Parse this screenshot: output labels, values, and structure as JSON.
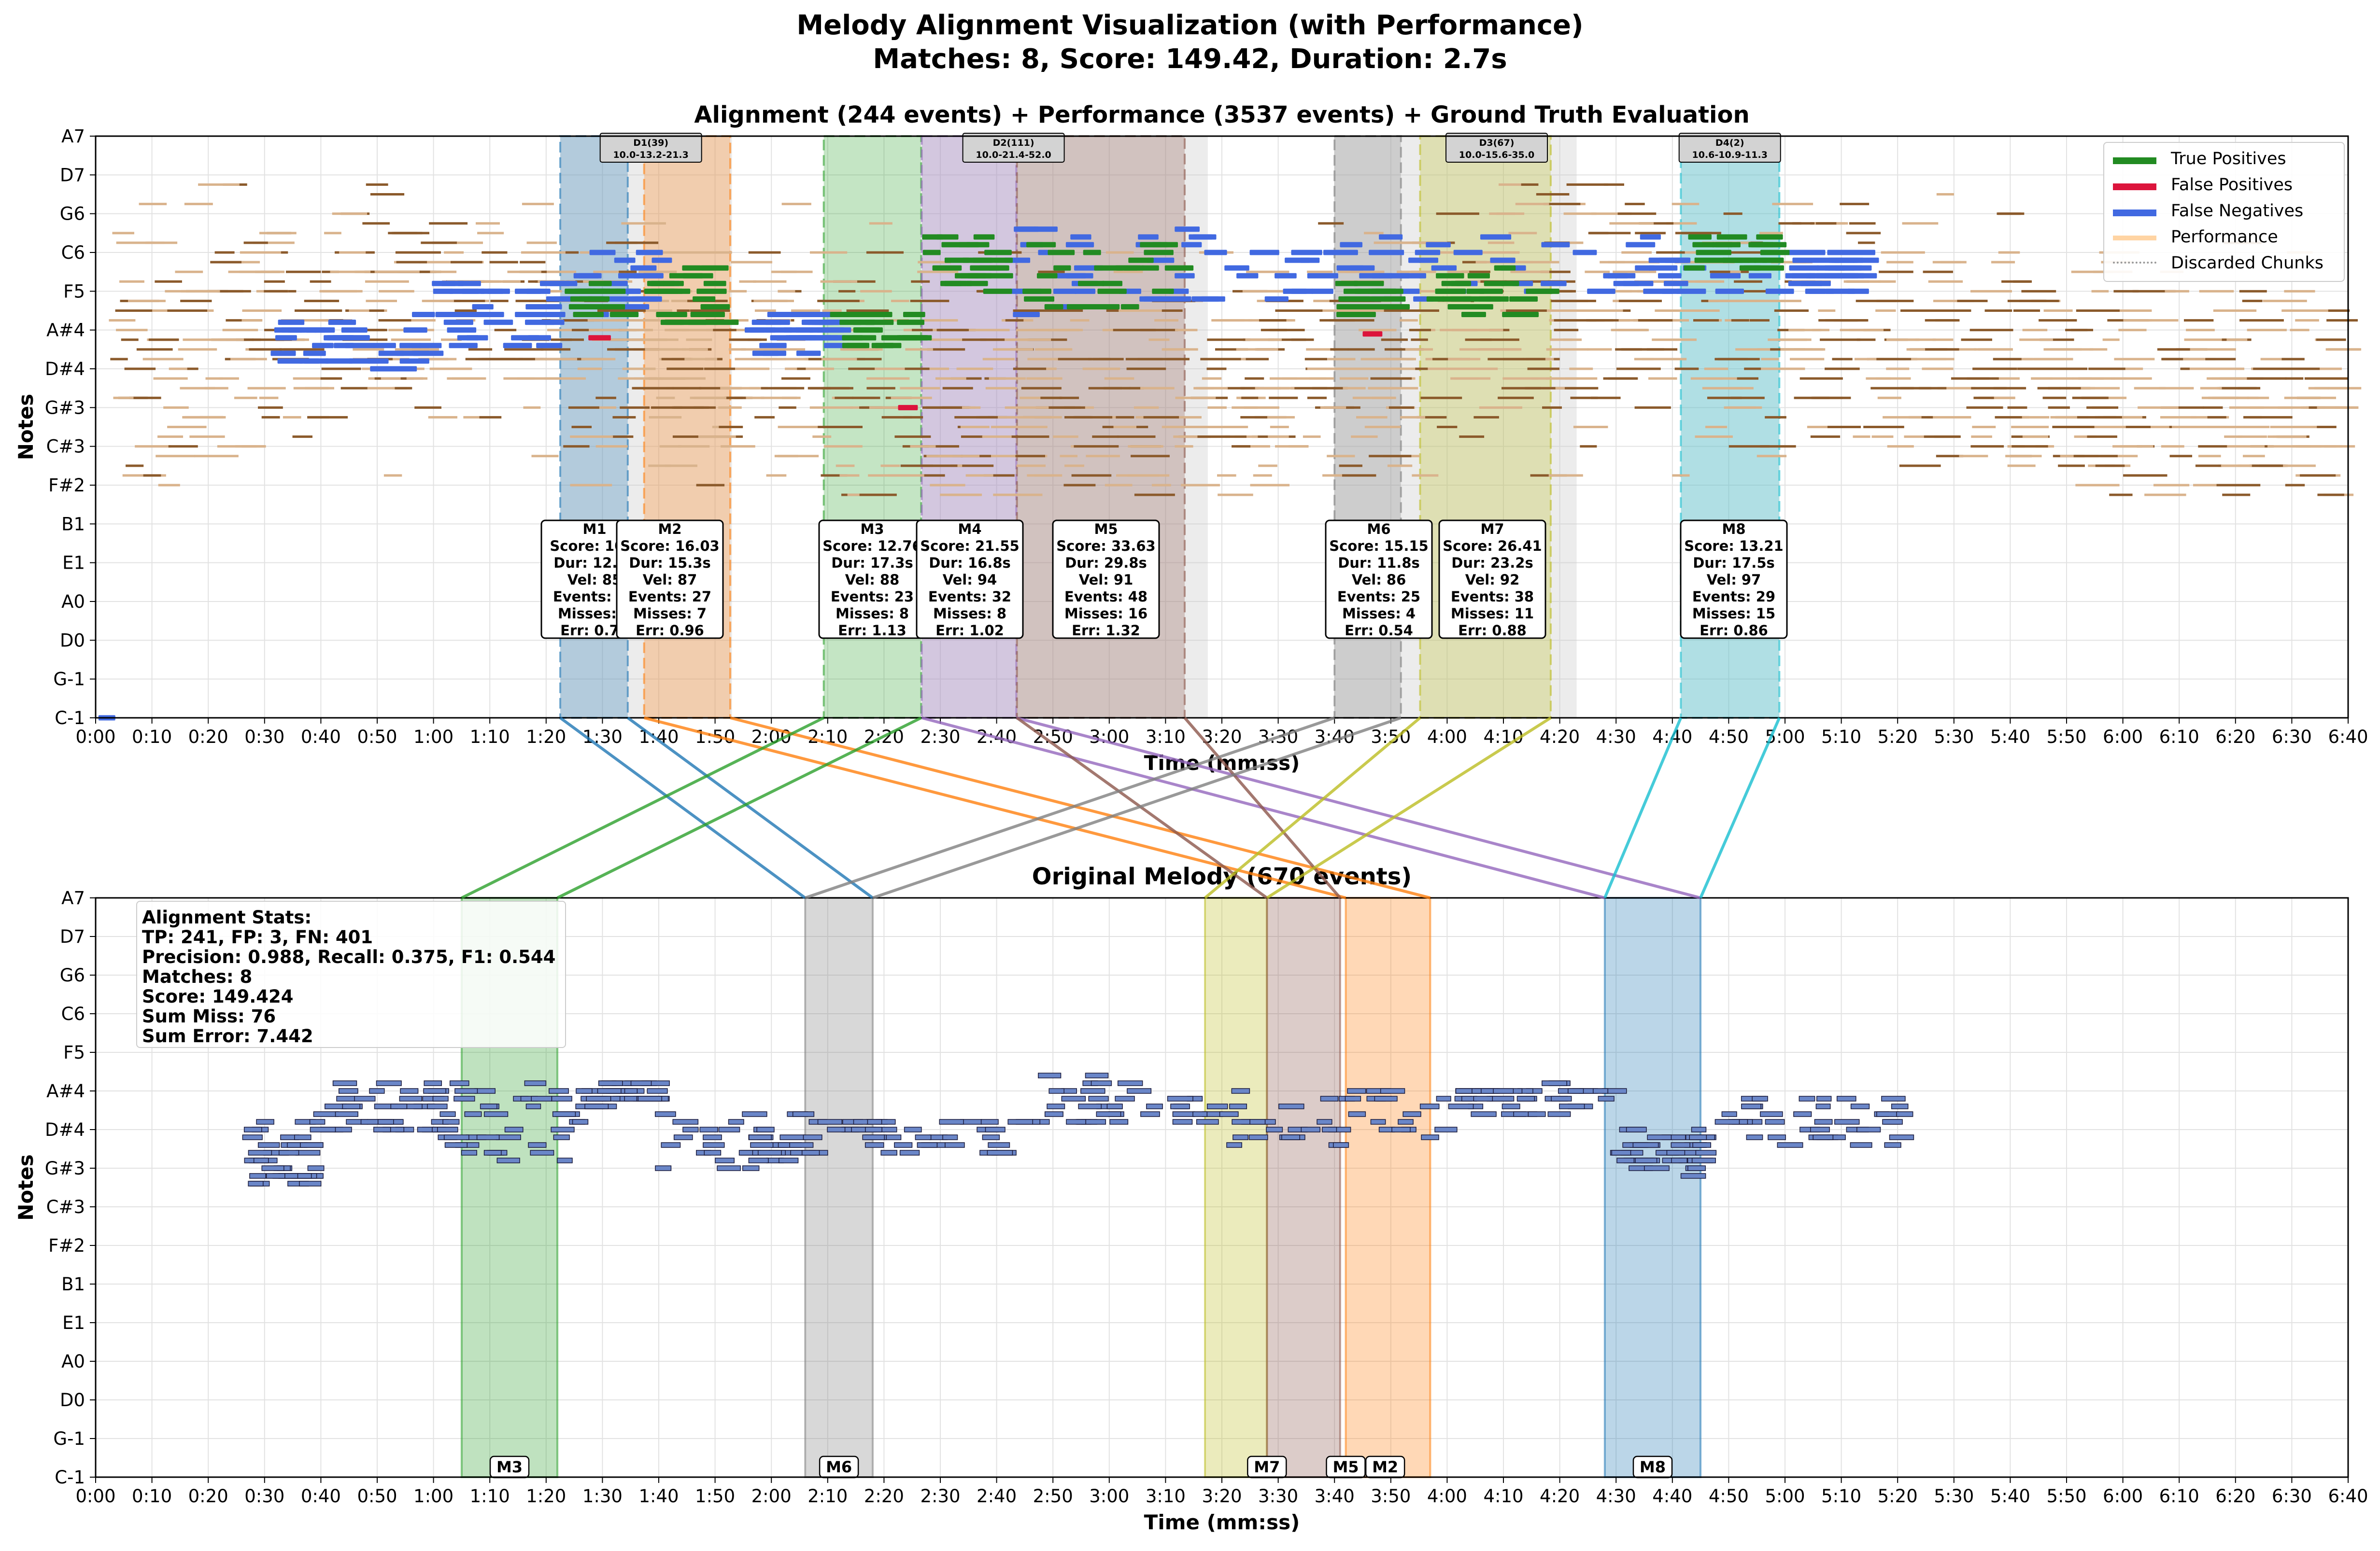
{
  "figure": {
    "title_line1": "Melody Alignment Visualization (with Performance)",
    "title_line2": "Matches: 8, Score: 149.42, Duration: 2.7s"
  },
  "colors": {
    "true_positive": "#228b22",
    "false_positive": "#dc143c",
    "false_negative": "#4169e1",
    "performance": "#8b5a2b",
    "performance_legend": "#ffd4a3",
    "discarded": "#c8c8c8",
    "melody_note": "#6a86c8",
    "melody_edge": "#1a1a3a",
    "grid": "#e2e2e2"
  },
  "legend": {
    "items": [
      {
        "label": "True Positives",
        "color": "#228b22",
        "style": "solid"
      },
      {
        "label": "False Positives",
        "color": "#dc143c",
        "style": "solid"
      },
      {
        "label": "False Negatives",
        "color": "#4169e1",
        "style": "solid"
      },
      {
        "label": "Performance",
        "color": "#ffd4a3",
        "style": "solid"
      },
      {
        "label": "Discarded Chunks",
        "color": "#999999",
        "style": "dotted"
      }
    ]
  },
  "stats": {
    "heading": "Alignment Stats:",
    "lines": [
      "TP: 241, FP: 3, FN: 401",
      "Precision: 0.988, Recall: 0.375, F1: 0.544",
      "Matches: 8",
      "Score: 149.424",
      "Sum Miss: 76",
      "Sum Error: 7.442"
    ]
  },
  "chart_data": [
    {
      "type": "piano-roll",
      "title": "Alignment (244 events) + Performance (3537 events) + Ground Truth Evaluation",
      "xlabel": "Time (mm:ss)",
      "ylabel": "Notes",
      "xlim_seconds": [
        0,
        400
      ],
      "x_tick_step_seconds": 10,
      "y_ticks": [
        "C-1",
        "G-1",
        "D0",
        "A0",
        "E1",
        "B1",
        "F#2",
        "C#3",
        "G#3",
        "D#4",
        "A#4",
        "F5",
        "C6",
        "G6",
        "D7",
        "A7"
      ],
      "grid": true,
      "legend_position": "upper right",
      "match_regions": [
        {
          "id": "M1",
          "start": 82.5,
          "end": 94.5,
          "color": "#1f77b4",
          "lines": [
            "M1",
            "Score: 10.7",
            "Dur: 12.0s",
            "Vel: 85",
            "Events: 22",
            "Misses: 7",
            "Err: 0.72"
          ]
        },
        {
          "id": "M2",
          "start": 97.4,
          "end": 112.7,
          "color": "#ff7f0e",
          "lines": [
            "M2",
            "Score: 16.03",
            "Dur: 15.3s",
            "Vel: 87",
            "Events: 27",
            "Misses: 7",
            "Err: 0.96"
          ]
        },
        {
          "id": "M3",
          "start": 129.3,
          "end": 146.6,
          "color": "#2ca02c",
          "lines": [
            "M3",
            "Score: 12.76",
            "Dur: 17.3s",
            "Vel: 88",
            "Events: 23",
            "Misses: 8",
            "Err: 1.13"
          ]
        },
        {
          "id": "M4",
          "start": 146.7,
          "end": 163.5,
          "color": "#9467bd",
          "lines": [
            "M4",
            "Score: 21.55",
            "Dur: 16.8s",
            "Vel: 94",
            "Events: 32",
            "Misses: 8",
            "Err: 1.02"
          ]
        },
        {
          "id": "M5",
          "start": 163.6,
          "end": 193.4,
          "color": "#8c564b",
          "lines": [
            "M5",
            "Score: 33.63",
            "Dur: 29.8s",
            "Vel: 91",
            "Events: 48",
            "Misses: 16",
            "Err: 1.32"
          ]
        },
        {
          "id": "M6",
          "start": 220.0,
          "end": 231.8,
          "color": "#7f7f7f",
          "lines": [
            "M6",
            "Score: 15.15",
            "Dur: 11.8s",
            "Vel: 86",
            "Events: 25",
            "Misses: 4",
            "Err: 0.54"
          ]
        },
        {
          "id": "M7",
          "start": 235.2,
          "end": 258.4,
          "color": "#bcbd22",
          "lines": [
            "M7",
            "Score: 26.41",
            "Dur: 23.2s",
            "Vel: 92",
            "Events: 38",
            "Misses: 11",
            "Err: 0.88"
          ]
        },
        {
          "id": "M8",
          "start": 281.5,
          "end": 299.0,
          "color": "#17becf",
          "lines": [
            "M8",
            "Score: 13.21",
            "Dur: 17.5s",
            "Vel: 97",
            "Events: 29",
            "Misses: 15",
            "Err: 0.86"
          ]
        }
      ],
      "discarded_regions": [
        {
          "id": "D1",
          "start": 82.5,
          "end": 113.0,
          "label_lines": [
            "D1(39)",
            "10.0-13.2-21.3"
          ]
        },
        {
          "id": "D2",
          "start": 146.7,
          "end": 197.5,
          "label_lines": [
            "D2(111)",
            "10.0-21.4-52.0"
          ]
        },
        {
          "id": "D3",
          "start": 220.0,
          "end": 263.0,
          "label_lines": [
            "D3(67)",
            "10.0-15.6-35.0"
          ]
        },
        {
          "id": "D4",
          "start": 281.5,
          "end": 299.0,
          "label_lines": [
            "D4(2)",
            "10.6-10.9-11.3"
          ]
        }
      ]
    },
    {
      "type": "piano-roll",
      "title": "Original Melody (670 events)",
      "xlabel": "Time (mm:ss)",
      "ylabel": "Notes",
      "xlim_seconds": [
        0,
        400
      ],
      "x_tick_step_seconds": 10,
      "y_ticks": [
        "C-1",
        "G-1",
        "D0",
        "A0",
        "E1",
        "B1",
        "F#2",
        "C#3",
        "G#3",
        "D#4",
        "A#4",
        "F5",
        "C6",
        "G6",
        "D7",
        "A7"
      ],
      "grid": true,
      "match_regions": [
        {
          "id": "M3",
          "start": 65.0,
          "end": 82.0,
          "color": "#2ca02c"
        },
        {
          "id": "M6",
          "start": 126.0,
          "end": 138.0,
          "color": "#7f7f7f"
        },
        {
          "id": "M7",
          "start": 197.0,
          "end": 208.0,
          "color": "#bcbd22"
        },
        {
          "id": "M5",
          "start": 208.0,
          "end": 221.0,
          "color": "#8c564b"
        },
        {
          "id": "M2",
          "start": 222.0,
          "end": 237.0,
          "color": "#ff7f0e"
        },
        {
          "id": "M8",
          "start": 268.0,
          "end": 285.0,
          "color": "#1f77b4"
        }
      ],
      "connections": [
        {
          "id": "M1",
          "top": [
            82.5,
            94.5
          ],
          "bottom": [
            126.0,
            138.0
          ],
          "color": "#1f77b4"
        },
        {
          "id": "M2",
          "top": [
            97.4,
            112.7
          ],
          "bottom": [
            222.0,
            237.0
          ],
          "color": "#ff7f0e"
        },
        {
          "id": "M3",
          "top": [
            129.3,
            146.6
          ],
          "bottom": [
            65.0,
            82.0
          ],
          "color": "#2ca02c"
        },
        {
          "id": "M4",
          "top": [
            146.7,
            163.5
          ],
          "bottom": [
            268.0,
            285.0
          ],
          "color": "#9467bd"
        },
        {
          "id": "M5",
          "top": [
            163.6,
            193.4
          ],
          "bottom": [
            208.0,
            221.0
          ],
          "color": "#8c564b"
        },
        {
          "id": "M6",
          "top": [
            220.0,
            231.8
          ],
          "bottom": [
            126.0,
            138.0
          ],
          "color": "#7f7f7f"
        },
        {
          "id": "M7",
          "top": [
            235.2,
            258.4
          ],
          "bottom": [
            197.0,
            208.0
          ],
          "color": "#bcbd22"
        },
        {
          "id": "M8",
          "top": [
            281.5,
            299.0
          ],
          "bottom": [
            268.0,
            285.0
          ],
          "color": "#17becf"
        }
      ]
    }
  ]
}
